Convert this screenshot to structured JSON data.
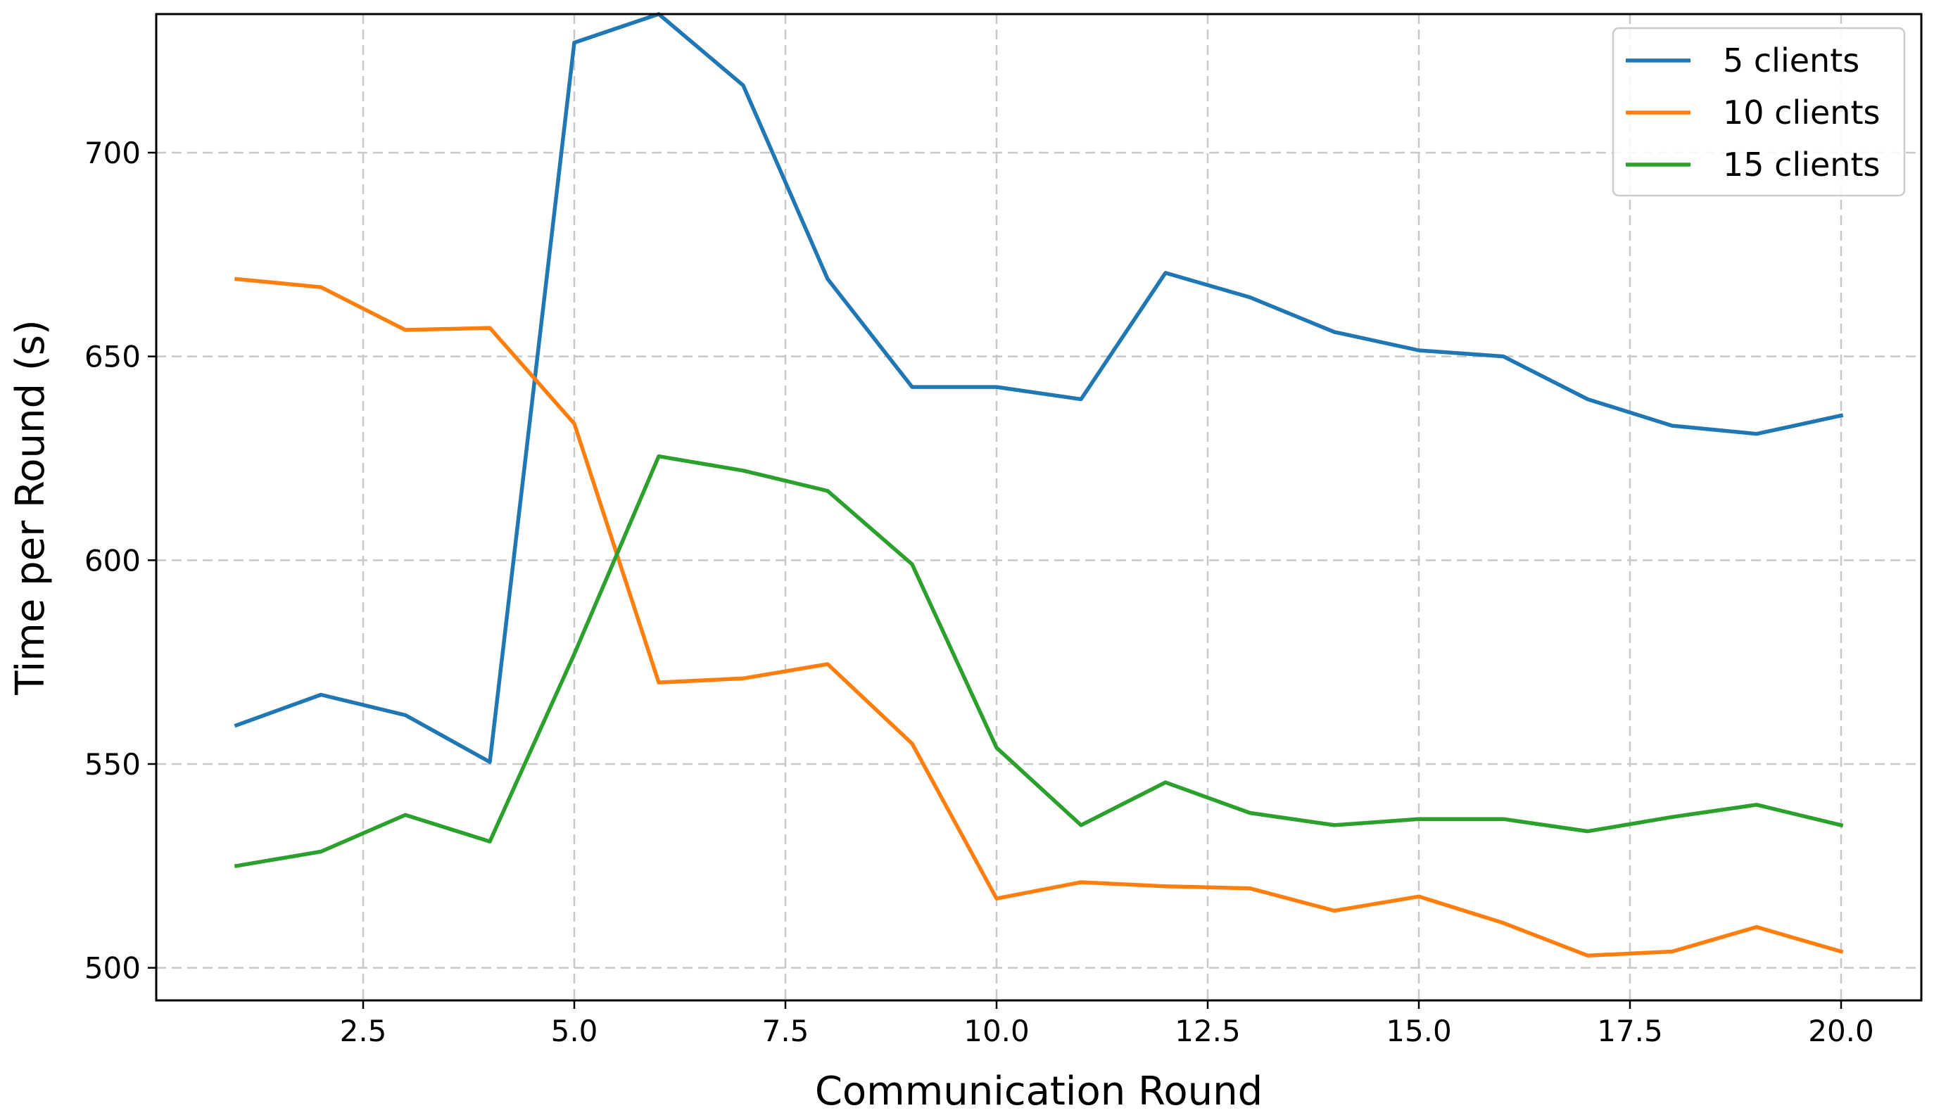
{
  "chart_data": {
    "type": "line",
    "xlabel": "Communication Round",
    "ylabel": "Time per Round (s)",
    "xlim": [
      0.05,
      20.95
    ],
    "ylim": [
      492,
      734
    ],
    "x_ticks": [
      2.5,
      5.0,
      7.5,
      10.0,
      12.5,
      15.0,
      17.5,
      20.0
    ],
    "x_tick_labels": [
      "2.5",
      "5.0",
      "7.5",
      "10.0",
      "12.5",
      "15.0",
      "17.5",
      "20.0"
    ],
    "y_ticks": [
      500,
      550,
      600,
      650,
      700
    ],
    "y_tick_labels": [
      "500",
      "550",
      "600",
      "650",
      "700"
    ],
    "grid": true,
    "legend_position": "top-right",
    "x": [
      1,
      2,
      3,
      4,
      5,
      6,
      7,
      8,
      9,
      10,
      11,
      12,
      13,
      14,
      15,
      16,
      17,
      18,
      19,
      20
    ],
    "series": [
      {
        "name": "5 clients",
        "color": "#1f77b4",
        "values": [
          559.5,
          567,
          562,
          550.5,
          727,
          734,
          716.5,
          669,
          642.5,
          642.5,
          639.5,
          670.5,
          664.5,
          656,
          651.5,
          650,
          639.5,
          633,
          631,
          635.5
        ]
      },
      {
        "name": "10 clients",
        "color": "#ff7f0e",
        "values": [
          669,
          667,
          656.5,
          657,
          633.5,
          570,
          571,
          574.5,
          555,
          517,
          521,
          520,
          519.5,
          514,
          517.5,
          511,
          503,
          504,
          510,
          504
        ]
      },
      {
        "name": "15 clients",
        "color": "#2ca02c",
        "values": [
          525,
          528.5,
          537.5,
          531,
          577,
          625.5,
          622,
          617,
          599,
          554,
          535,
          545.5,
          538,
          535,
          536.5,
          536.5,
          533.5,
          537,
          540,
          535
        ]
      }
    ]
  }
}
